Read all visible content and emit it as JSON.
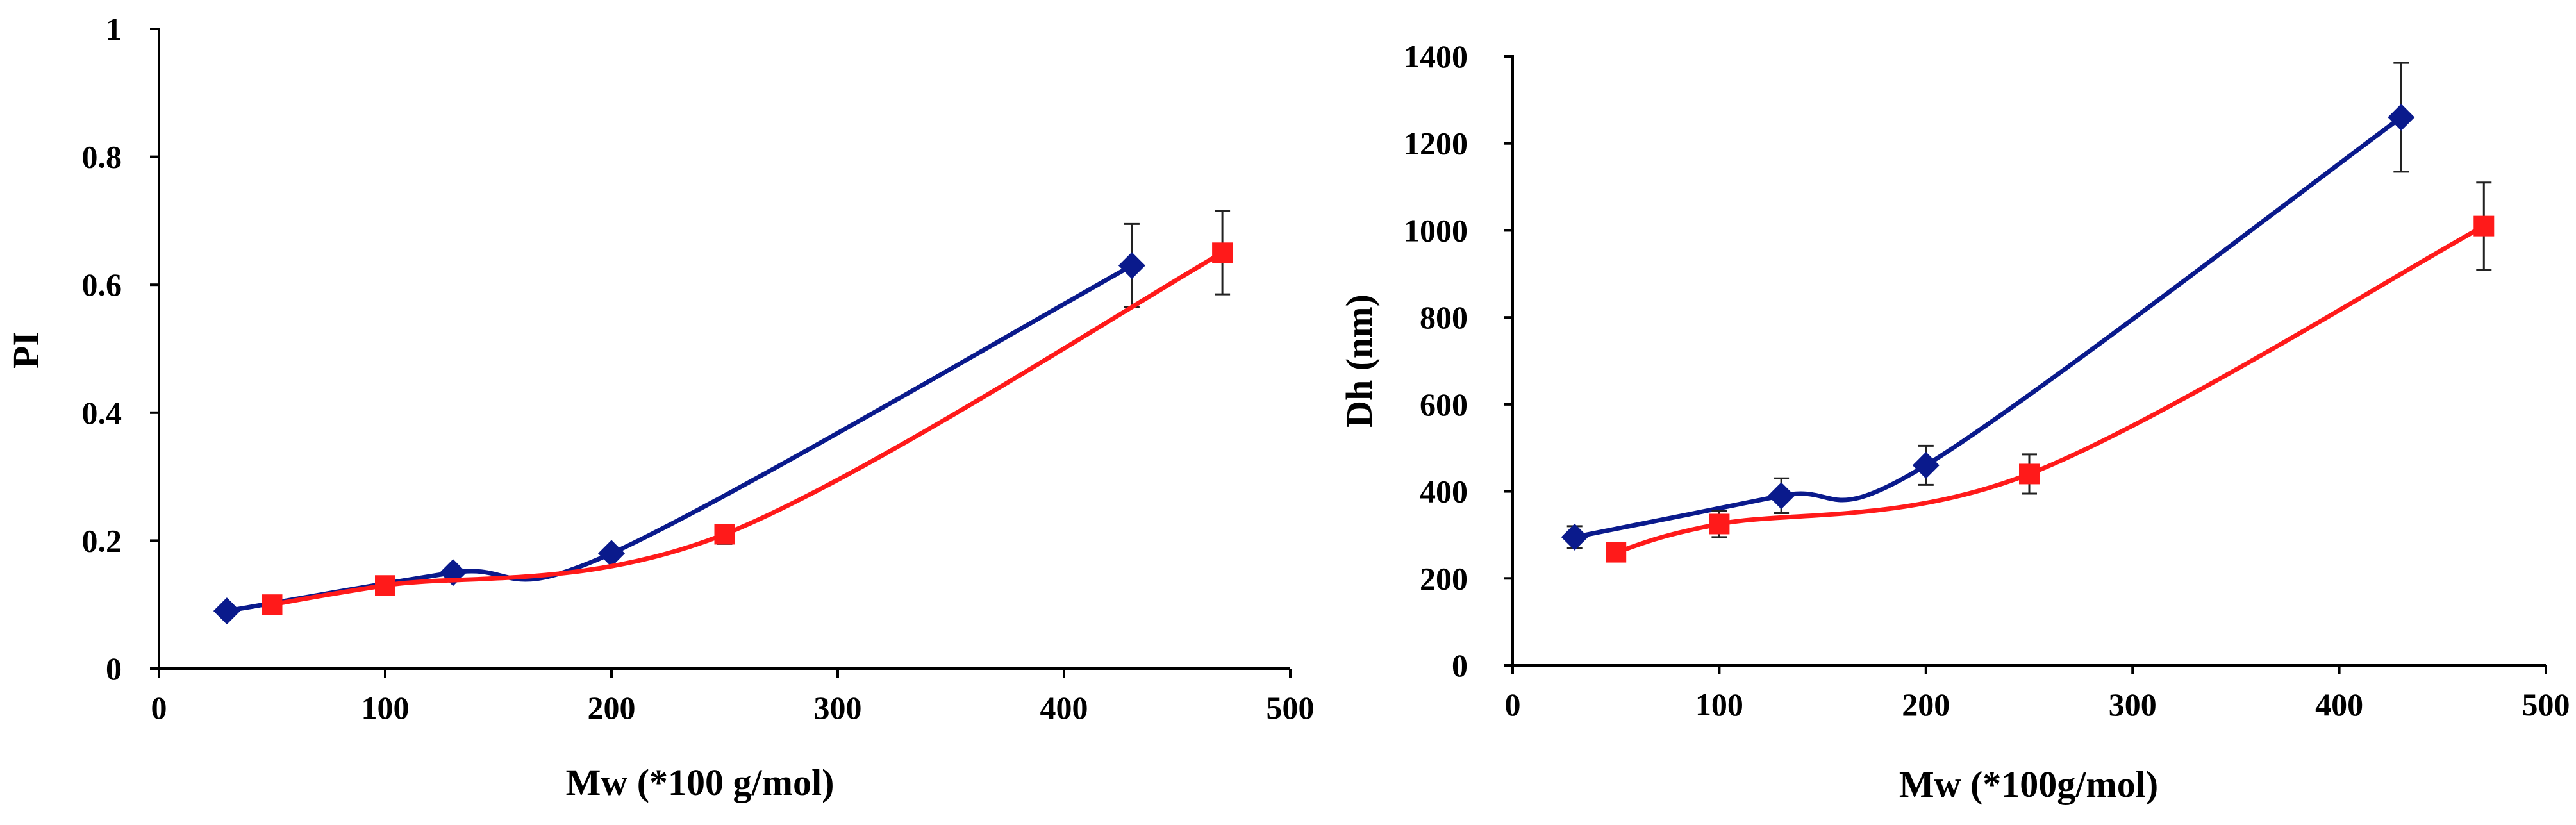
{
  "chart_data": [
    {
      "type": "line",
      "title": "",
      "xlabel": "Mw (*100 g/mol)",
      "ylabel": "PI",
      "xlim": [
        0,
        500
      ],
      "ylim": [
        0,
        1
      ],
      "xticks": [
        0,
        100,
        200,
        300,
        400,
        500
      ],
      "yticks": [
        0,
        0.2,
        0.4,
        0.6,
        0.8,
        1
      ],
      "xtick_labels": [
        "0",
        "100",
        "200",
        "300",
        "400",
        "500"
      ],
      "ytick_labels": [
        "0",
        "0.2",
        "0.4",
        "0.6",
        "0.8",
        "1"
      ],
      "grid": false,
      "legend": "none",
      "series": [
        {
          "name": "series-blue",
          "color": "#0a1a8c",
          "marker": "diamond",
          "x": [
            30,
            130,
            200,
            430
          ],
          "y": [
            0.09,
            0.15,
            0.18,
            0.63
          ],
          "error": [
            0,
            0,
            0,
            0.065
          ]
        },
        {
          "name": "series-red",
          "color": "#ff1a1a",
          "marker": "square",
          "x": [
            50,
            100,
            250,
            470
          ],
          "y": [
            0.1,
            0.13,
            0.21,
            0.65
          ],
          "error": [
            0,
            0,
            0.015,
            0.065
          ]
        }
      ]
    },
    {
      "type": "line",
      "title": "",
      "xlabel": "Mw (*100g/mol)",
      "ylabel": "Dh (nm)",
      "xlim": [
        0,
        500
      ],
      "ylim": [
        0,
        1400
      ],
      "xticks": [
        0,
        100,
        200,
        300,
        400,
        500
      ],
      "yticks": [
        0,
        200,
        400,
        600,
        800,
        1000,
        1200,
        1400
      ],
      "xtick_labels": [
        "0",
        "100",
        "200",
        "300",
        "400",
        "500"
      ],
      "ytick_labels": [
        "0",
        "200",
        "400",
        "600",
        "800",
        "1000",
        "1200",
        "1400"
      ],
      "grid": false,
      "legend": "none",
      "series": [
        {
          "name": "series-blue",
          "color": "#0a1a8c",
          "marker": "diamond",
          "x": [
            30,
            130,
            200,
            430
          ],
          "y": [
            295,
            390,
            460,
            1260
          ],
          "error": [
            25,
            40,
            45,
            125
          ]
        },
        {
          "name": "series-red",
          "color": "#ff1a1a",
          "marker": "square",
          "x": [
            50,
            100,
            250,
            470
          ],
          "y": [
            260,
            325,
            440,
            1010
          ],
          "error": [
            20,
            30,
            45,
            100
          ]
        }
      ]
    }
  ]
}
